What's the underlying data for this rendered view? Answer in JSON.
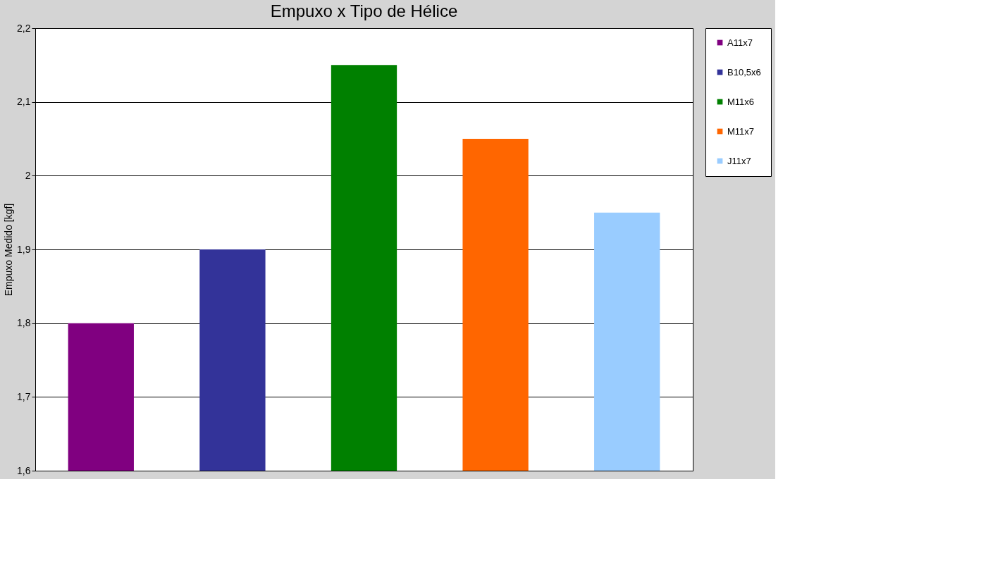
{
  "chart_data": {
    "type": "bar",
    "title": "Empuxo x Tipo de Hélice",
    "ylabel": "Empuxo Medido [kgf]",
    "categories": [
      null
    ],
    "series": [
      {
        "name": "A11x7",
        "color": "#800080",
        "values": [
          1.8
        ]
      },
      {
        "name": "B10,5x6",
        "color": "#333399",
        "values": [
          1.9
        ]
      },
      {
        "name": "M11x6",
        "color": "#008000",
        "values": [
          2.15
        ]
      },
      {
        "name": "M11x7",
        "color": "#ff6600",
        "values": [
          2.05
        ]
      },
      {
        "name": "J11x7",
        "color": "#99ccff",
        "values": [
          1.95
        ]
      }
    ],
    "ylim": [
      1.6,
      2.2
    ],
    "yticks": [
      {
        "value": 1.6,
        "label": "1,6"
      },
      {
        "value": 1.7,
        "label": "1,7"
      },
      {
        "value": 1.8,
        "label": "1,8"
      },
      {
        "value": 1.9,
        "label": "1,9"
      },
      2,
      {
        "value": 2.1,
        "label": "2,1"
      },
      {
        "value": 2.2,
        "label": "2,2"
      }
    ],
    "grid": "y",
    "legend": "right",
    "tick_labels": "y"
  }
}
